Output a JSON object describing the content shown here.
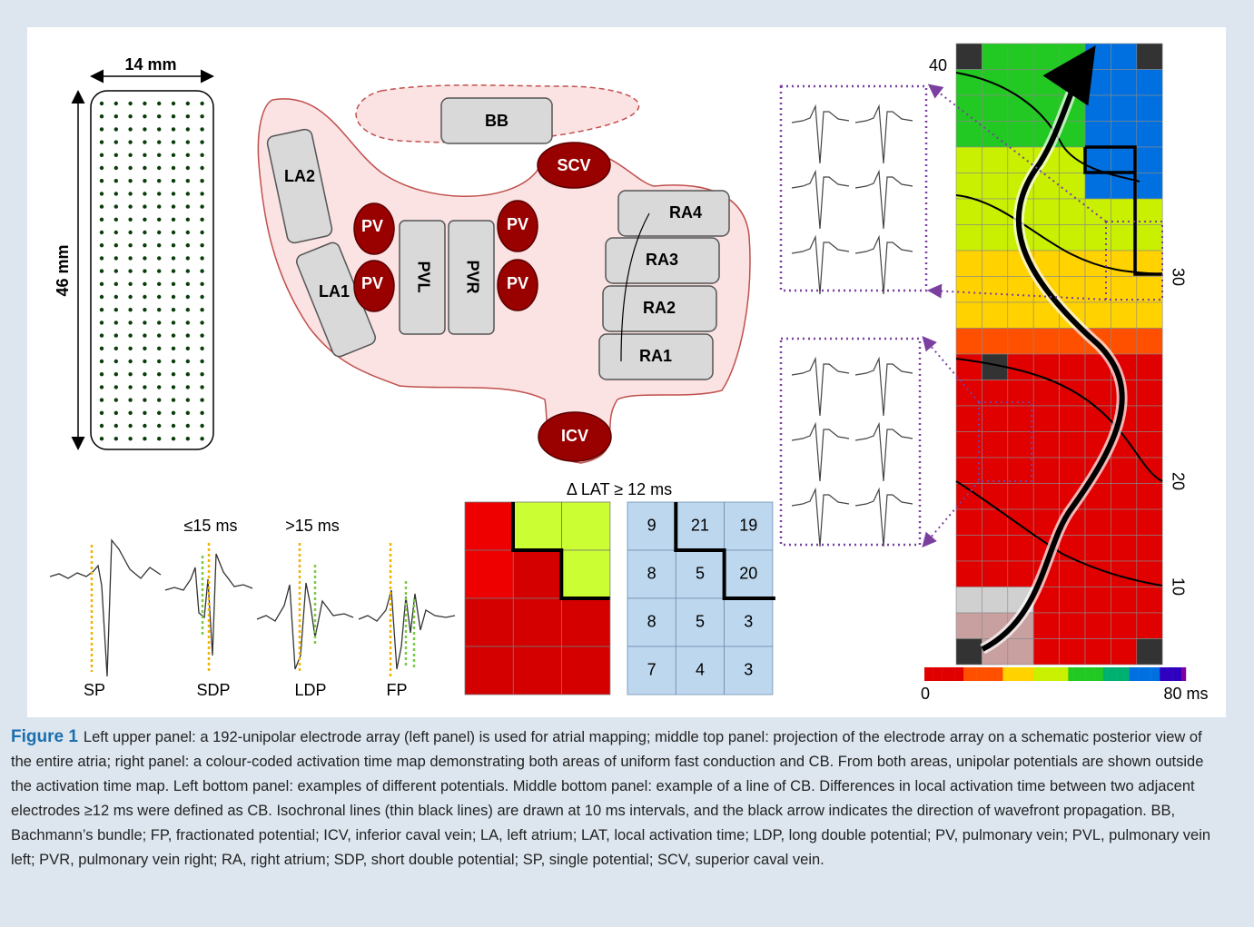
{
  "electrode_array": {
    "width_label": "14 mm",
    "height_label": "46 mm"
  },
  "atria_diagram": {
    "bb": "BB",
    "scv": "SCV",
    "la2": "LA2",
    "la1": "LA1",
    "pv": [
      "PV",
      "PV",
      "PV",
      "PV"
    ],
    "pvl": "PVL",
    "pvr": "PVR",
    "ra": [
      "RA4",
      "RA3",
      "RA2",
      "RA1"
    ],
    "icv": "ICV"
  },
  "potentials": {
    "thresholds": [
      "≤15 ms",
      ">15 ms"
    ],
    "labels": [
      "SP",
      "SDP",
      "LDP",
      "FP"
    ]
  },
  "cb_example": {
    "title": "Δ LAT ≥ 12 ms",
    "grid": [
      [
        9,
        21,
        19
      ],
      [
        8,
        5,
        20
      ],
      [
        8,
        5,
        3
      ],
      [
        7,
        4,
        3
      ]
    ]
  },
  "activation_map": {
    "isochrone_labels": [
      "40",
      "30",
      "20",
      "10"
    ],
    "scale_min": "0",
    "scale_max": "80 ms"
  },
  "caption": {
    "label": "Figure 1",
    "text": "Left upper panel: a 192-unipolar electrode array (left panel) is used for atrial mapping; middle top panel: projection of the electrode array on a schematic posterior view of the entire atria; right panel: a colour-coded activation time map demonstrating both areas of uniform fast conduction and CB. From both areas, unipolar potentials are shown outside the activation time map. Left bottom panel: examples of different potentials. Middle bottom panel: example of a line of CB. Differences in local activation time between two adjacent electrodes ≥12 ms were defined as CB. Isochronal lines (thin black lines) are drawn at 10 ms intervals, and the black arrow indicates the direction of wavefront propagation. BB, Bachmann’s bundle; FP, fractionated potential; ICV, inferior caval vein; LA, left atrium; LAT, local activation time; LDP, long double potential; PV, pulmonary vein; PVL, pulmonary vein left; PVR, pulmonary vein right; RA, right atrium; SDP, short double potential; SP, single potential; SCV, superior caval vein."
  }
}
